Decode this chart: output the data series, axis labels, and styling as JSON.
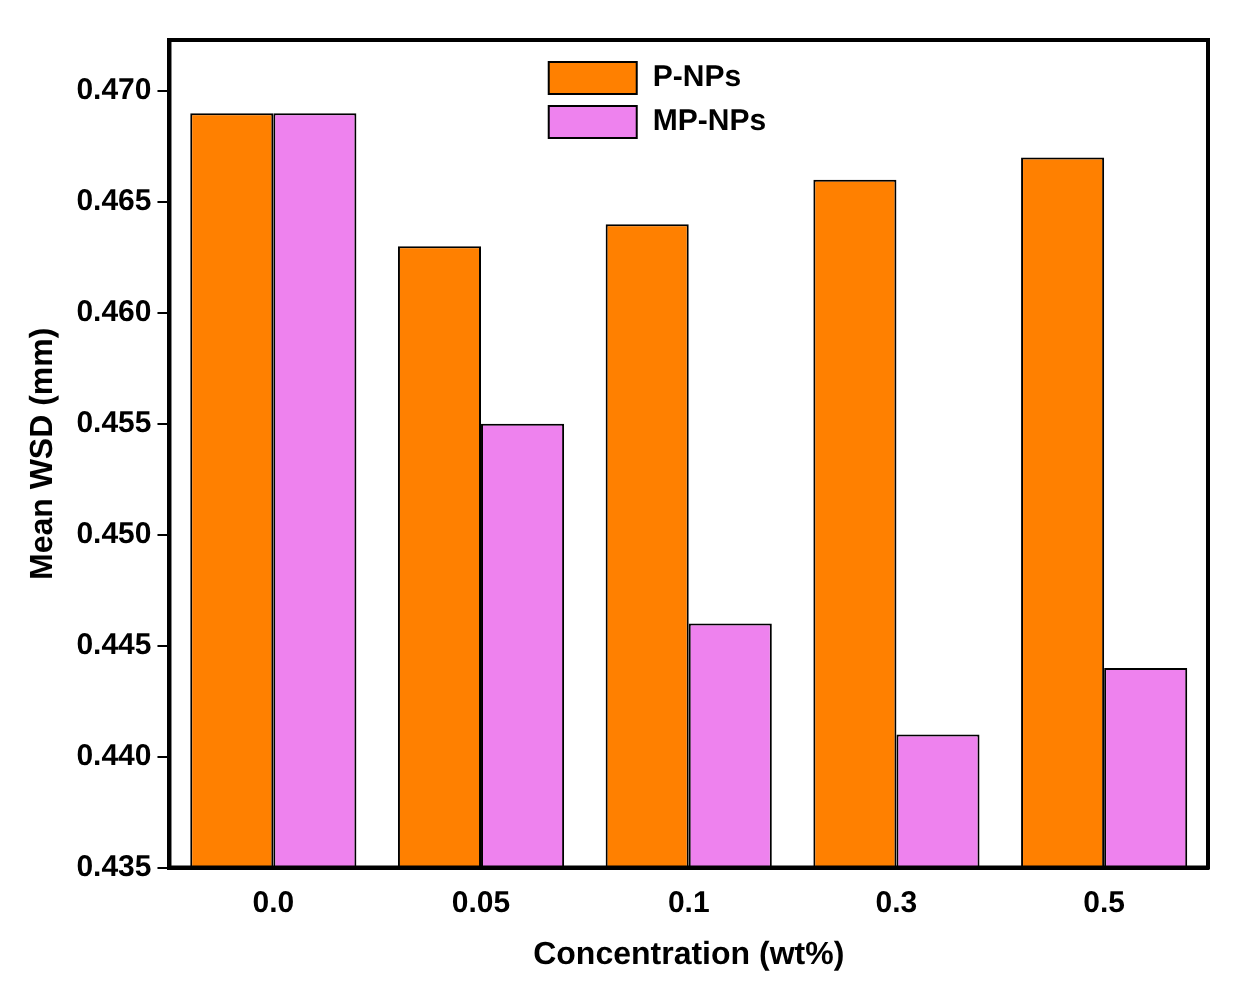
{
  "chart_data": {
    "type": "bar",
    "xlabel": "Concentration (wt%)",
    "ylabel": "Mean WSD (mm)",
    "categories": [
      "0.0",
      "0.05",
      "0.1",
      "0.3",
      "0.5"
    ],
    "series": [
      {
        "name": "P-NPs",
        "color": "#ff8000",
        "values": [
          0.469,
          0.463,
          0.464,
          0.466,
          0.467
        ]
      },
      {
        "name": "MP-NPs",
        "color": "#ee82ee",
        "values": [
          0.469,
          0.455,
          0.446,
          0.441,
          0.444
        ]
      }
    ],
    "ylim": [
      0.435,
      0.4723
    ],
    "yticks": [
      {
        "value": 0.435,
        "label": "0.435"
      },
      {
        "value": 0.44,
        "label": "0.440"
      },
      {
        "value": 0.445,
        "label": "0.445"
      },
      {
        "value": 0.45,
        "label": "0.450"
      },
      {
        "value": 0.455,
        "label": "0.455"
      },
      {
        "value": 0.46,
        "label": "0.460"
      },
      {
        "value": 0.465,
        "label": "0.465"
      },
      {
        "value": 0.47,
        "label": "0.470"
      }
    ],
    "grid": false,
    "legend": "top"
  }
}
